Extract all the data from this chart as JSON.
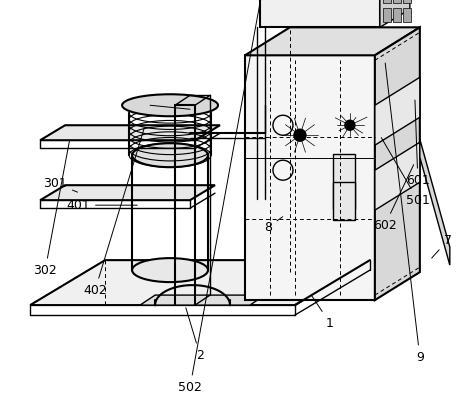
{
  "background_color": "#ffffff",
  "line_color": "#000000",
  "figsize": [
    4.71,
    4.15
  ],
  "dpi": 100
}
